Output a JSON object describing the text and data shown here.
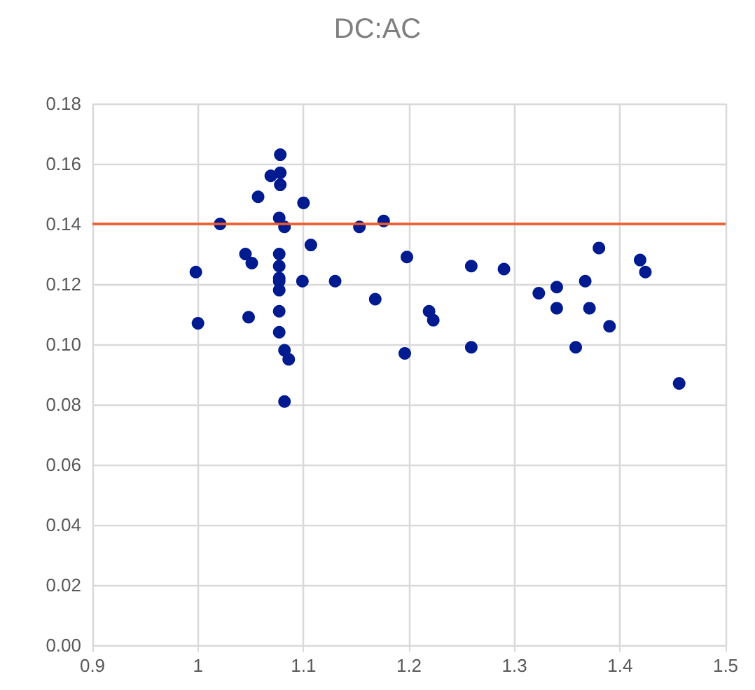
{
  "chart_data": {
    "type": "scatter",
    "title": "DC:AC",
    "series": [
      {
        "color": "#001a8f",
        "x": [
          1.078,
          1.078,
          1.069,
          1.078,
          1.057,
          1.1,
          1.077,
          1.082,
          1.021,
          1.153,
          1.176,
          1.107,
          1.045,
          1.051,
          1.077,
          1.077,
          1.077,
          1.077,
          1.077,
          0.998,
          1.099,
          1.13,
          1.168,
          1.077,
          1.0,
          1.048,
          1.077,
          1.082,
          1.086,
          1.082,
          1.198,
          1.219,
          1.223,
          1.196,
          1.259,
          1.259,
          1.29,
          1.323,
          1.34,
          1.34,
          1.367,
          1.371,
          1.38,
          1.358,
          1.39,
          1.419,
          1.424,
          1.456
        ],
        "values": [
          0.163,
          0.157,
          0.156,
          0.153,
          0.149,
          0.147,
          0.142,
          0.139,
          0.14,
          0.139,
          0.141,
          0.133,
          0.13,
          0.127,
          0.13,
          0.126,
          0.122,
          0.121,
          0.118,
          0.124,
          0.121,
          0.121,
          0.115,
          0.111,
          0.107,
          0.109,
          0.104,
          0.098,
          0.095,
          0.081,
          0.129,
          0.111,
          0.108,
          0.097,
          0.126,
          0.099,
          0.125,
          0.117,
          0.119,
          0.112,
          0.121,
          0.112,
          0.132,
          0.099,
          0.106,
          0.128,
          0.124,
          0.087
        ]
      }
    ],
    "xlim": [
      0.9,
      1.5
    ],
    "xticks": [
      0.9,
      1,
      1.1,
      1.2,
      1.3,
      1.4,
      1.5
    ],
    "ylim": [
      0,
      0.18
    ],
    "yticks": [
      {
        "value": 0,
        "label": "0.00"
      },
      {
        "value": 0.02,
        "label": "0.02"
      },
      {
        "value": 0.04,
        "label": "0.04"
      },
      {
        "value": 0.06,
        "label": "0.06"
      },
      {
        "value": 0.08,
        "label": "0.08"
      },
      {
        "value": 0.1,
        "label": "0.10"
      },
      {
        "value": 0.12,
        "label": "0.12"
      },
      {
        "value": 0.14,
        "label": "0.14"
      },
      {
        "value": 0.16,
        "label": "0.16"
      },
      {
        "value": 0.18,
        "label": "0.18"
      }
    ],
    "ref_lines": [
      {
        "axis": "y",
        "value": 0.14,
        "color": "#f05a28",
        "line_style": "solid"
      }
    ],
    "grid": true,
    "marker": "circle"
  }
}
